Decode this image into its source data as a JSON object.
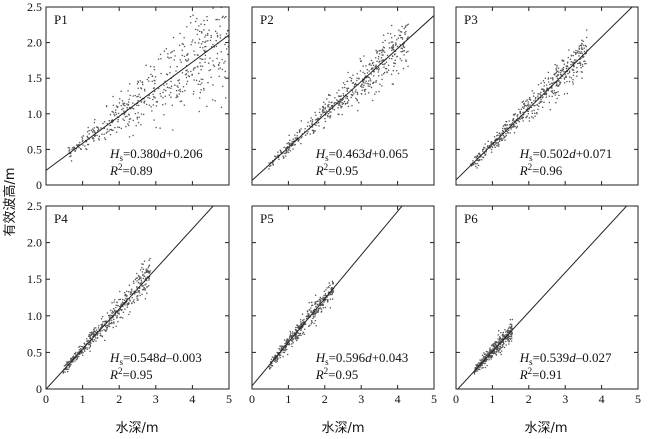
{
  "chart_data": {
    "type": "scatter",
    "shared_ylabel": "有效波高/m",
    "shared_xlabel": "水深/m",
    "panels": [
      {
        "label": "P1",
        "xlim": [
          0,
          5
        ],
        "ylim": [
          0,
          2.5
        ],
        "xticks": [],
        "yticks": [
          "0",
          "0.5",
          "1.0",
          "1.5",
          "2.0",
          "2.5"
        ],
        "fit": {
          "slope": 0.38,
          "intercept": 0.206
        },
        "eq_hs": "H",
        "eq_sub": "s",
        "eq_rest": "=0.380d+0.206",
        "r2_text": "=0.89",
        "scatter": {
          "x_range": [
            0.6,
            5.0
          ],
          "noise_base": 0.03,
          "noise_growth": 0.08,
          "n": 520
        }
      },
      {
        "label": "P2",
        "xlim": [
          0,
          5
        ],
        "ylim": [
          0,
          2.5
        ],
        "xticks": [],
        "yticks": [],
        "fit": {
          "slope": 0.463,
          "intercept": 0.065
        },
        "eq_hs": "H",
        "eq_sub": "s",
        "eq_rest": "=0.463d+0.065",
        "r2_text": "=0.95",
        "scatter": {
          "x_range": [
            0.45,
            4.3
          ],
          "noise_base": 0.03,
          "noise_growth": 0.04,
          "n": 520
        }
      },
      {
        "label": "P3",
        "xlim": [
          0,
          5
        ],
        "ylim": [
          0,
          2.5
        ],
        "xticks": [],
        "yticks": [],
        "fit": {
          "slope": 0.502,
          "intercept": 0.071
        },
        "eq_hs": "H",
        "eq_sub": "s",
        "eq_rest": "=0.502d+0.071",
        "r2_text": "=0.96",
        "scatter": {
          "x_range": [
            0.4,
            3.6
          ],
          "noise_base": 0.03,
          "noise_growth": 0.035,
          "n": 520
        }
      },
      {
        "label": "P4",
        "xlim": [
          0,
          5
        ],
        "ylim": [
          0,
          2.5
        ],
        "xticks": [
          "1",
          "2",
          "3",
          "4",
          "5"
        ],
        "yticks": [
          "0",
          "0.5",
          "1.0",
          "1.5",
          "2.0",
          "2.5"
        ],
        "fit": {
          "slope": 0.548,
          "intercept": -0.003
        },
        "eq_hs": "H",
        "eq_sub": "s",
        "eq_rest": "=0.548d–0.003",
        "r2_text": "=0.95",
        "scatter": {
          "x_range": [
            0.45,
            2.85
          ],
          "noise_base": 0.03,
          "noise_growth": 0.035,
          "n": 480
        }
      },
      {
        "label": "P5",
        "xlim": [
          0,
          5
        ],
        "ylim": [
          0,
          2.5
        ],
        "xticks": [
          "0",
          "1",
          "2",
          "3",
          "4",
          "5"
        ],
        "yticks": [],
        "fit": {
          "slope": 0.596,
          "intercept": 0.043
        },
        "eq_hs": "H",
        "eq_sub": "s",
        "eq_rest": "=0.596d+0.043",
        "r2_text": "=0.95",
        "scatter": {
          "x_range": [
            0.45,
            2.25
          ],
          "noise_base": 0.03,
          "noise_growth": 0.03,
          "n": 420
        }
      },
      {
        "label": "P6",
        "xlim": [
          0,
          5
        ],
        "ylim": [
          0,
          2.5
        ],
        "xticks": [
          "0",
          "1",
          "2",
          "3",
          "4",
          "5"
        ],
        "yticks": [],
        "fit": {
          "slope": 0.539,
          "intercept": -0.027
        },
        "eq_hs": "H",
        "eq_sub": "s",
        "eq_rest": "=0.539d–0.027",
        "r2_text": "=0.91",
        "scatter": {
          "x_range": [
            0.5,
            1.55
          ],
          "noise_base": 0.03,
          "noise_growth": 0.035,
          "n": 380
        }
      }
    ],
    "x0_label": "0",
    "r2_symbol": "R",
    "r2_sup": "2"
  },
  "colors": {
    "point": "#555555",
    "line": "#222222",
    "axes": "#222222"
  }
}
